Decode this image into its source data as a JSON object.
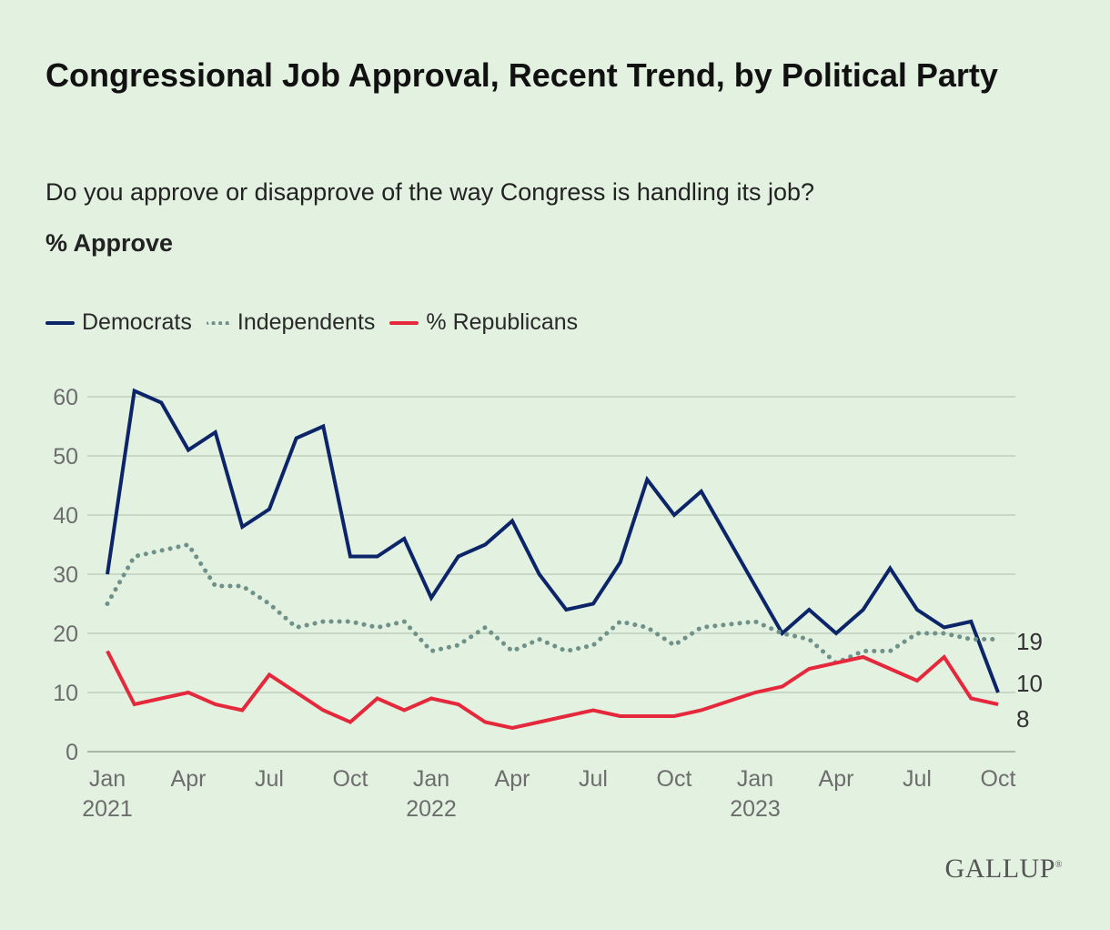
{
  "chart_data": {
    "type": "line",
    "title": "Congressional Job Approval, Recent Trend, by Political Party",
    "subtitle": "Do you approve or disapprove of the way Congress is handling its job?",
    "ylabel": "% Approve",
    "xlabel": "",
    "ylim": [
      0,
      60
    ],
    "yticks": [
      0,
      10,
      20,
      30,
      40,
      50,
      60
    ],
    "grid": true,
    "legend_position": "top-left",
    "x_unit": "months since Jan 2021",
    "xlim": [
      0,
      33
    ],
    "xticks": [
      {
        "x": 0,
        "label": "Jan",
        "year": "2021"
      },
      {
        "x": 3,
        "label": "Apr",
        "year": ""
      },
      {
        "x": 6,
        "label": "Jul",
        "year": ""
      },
      {
        "x": 9,
        "label": "Oct",
        "year": ""
      },
      {
        "x": 12,
        "label": "Jan",
        "year": "2022"
      },
      {
        "x": 15,
        "label": "Apr",
        "year": ""
      },
      {
        "x": 18,
        "label": "Jul",
        "year": ""
      },
      {
        "x": 21,
        "label": "Oct",
        "year": ""
      },
      {
        "x": 24,
        "label": "Jan",
        "year": "2023"
      },
      {
        "x": 27,
        "label": "Apr",
        "year": ""
      },
      {
        "x": 30,
        "label": "Jul",
        "year": ""
      },
      {
        "x": 33,
        "label": "Oct",
        "year": ""
      }
    ],
    "x": [
      0,
      1,
      2,
      3,
      4,
      5,
      6,
      7,
      8,
      9,
      10,
      11,
      12,
      13,
      14,
      15,
      16,
      17,
      18,
      19,
      20,
      21,
      22,
      23,
      24,
      25,
      26,
      27,
      28,
      29,
      30,
      31,
      32,
      33
    ],
    "series": [
      {
        "name": "Democrats",
        "color": "#0c2468",
        "style": "solid",
        "end_label": "10",
        "values": [
          30,
          61,
          59,
          51,
          54,
          38,
          41,
          53,
          55,
          33,
          33,
          36,
          26,
          33,
          35,
          39,
          30,
          24,
          25,
          32,
          46,
          40,
          44,
          null,
          28,
          20,
          24,
          20,
          24,
          31,
          24,
          21,
          22,
          10
        ]
      },
      {
        "name": "Independents",
        "color": "#6f918a",
        "style": "dotted",
        "end_label": "19",
        "values": [
          25,
          33,
          34,
          35,
          28,
          28,
          25,
          21,
          22,
          22,
          21,
          22,
          17,
          18,
          21,
          17,
          19,
          17,
          18,
          22,
          21,
          18,
          21,
          null,
          22,
          20,
          19,
          15,
          17,
          17,
          20,
          20,
          19,
          19
        ]
      },
      {
        "name": "% Republicans",
        "color": "#e5283b",
        "style": "solid",
        "end_label": "8",
        "values": [
          17,
          8,
          9,
          10,
          8,
          7,
          13,
          10,
          7,
          5,
          9,
          7,
          9,
          8,
          5,
          4,
          5,
          6,
          7,
          6,
          6,
          6,
          7,
          null,
          10,
          11,
          14,
          15,
          16,
          14,
          12,
          16,
          9,
          8
        ]
      }
    ]
  },
  "branding": {
    "logo": "GALLUP"
  }
}
